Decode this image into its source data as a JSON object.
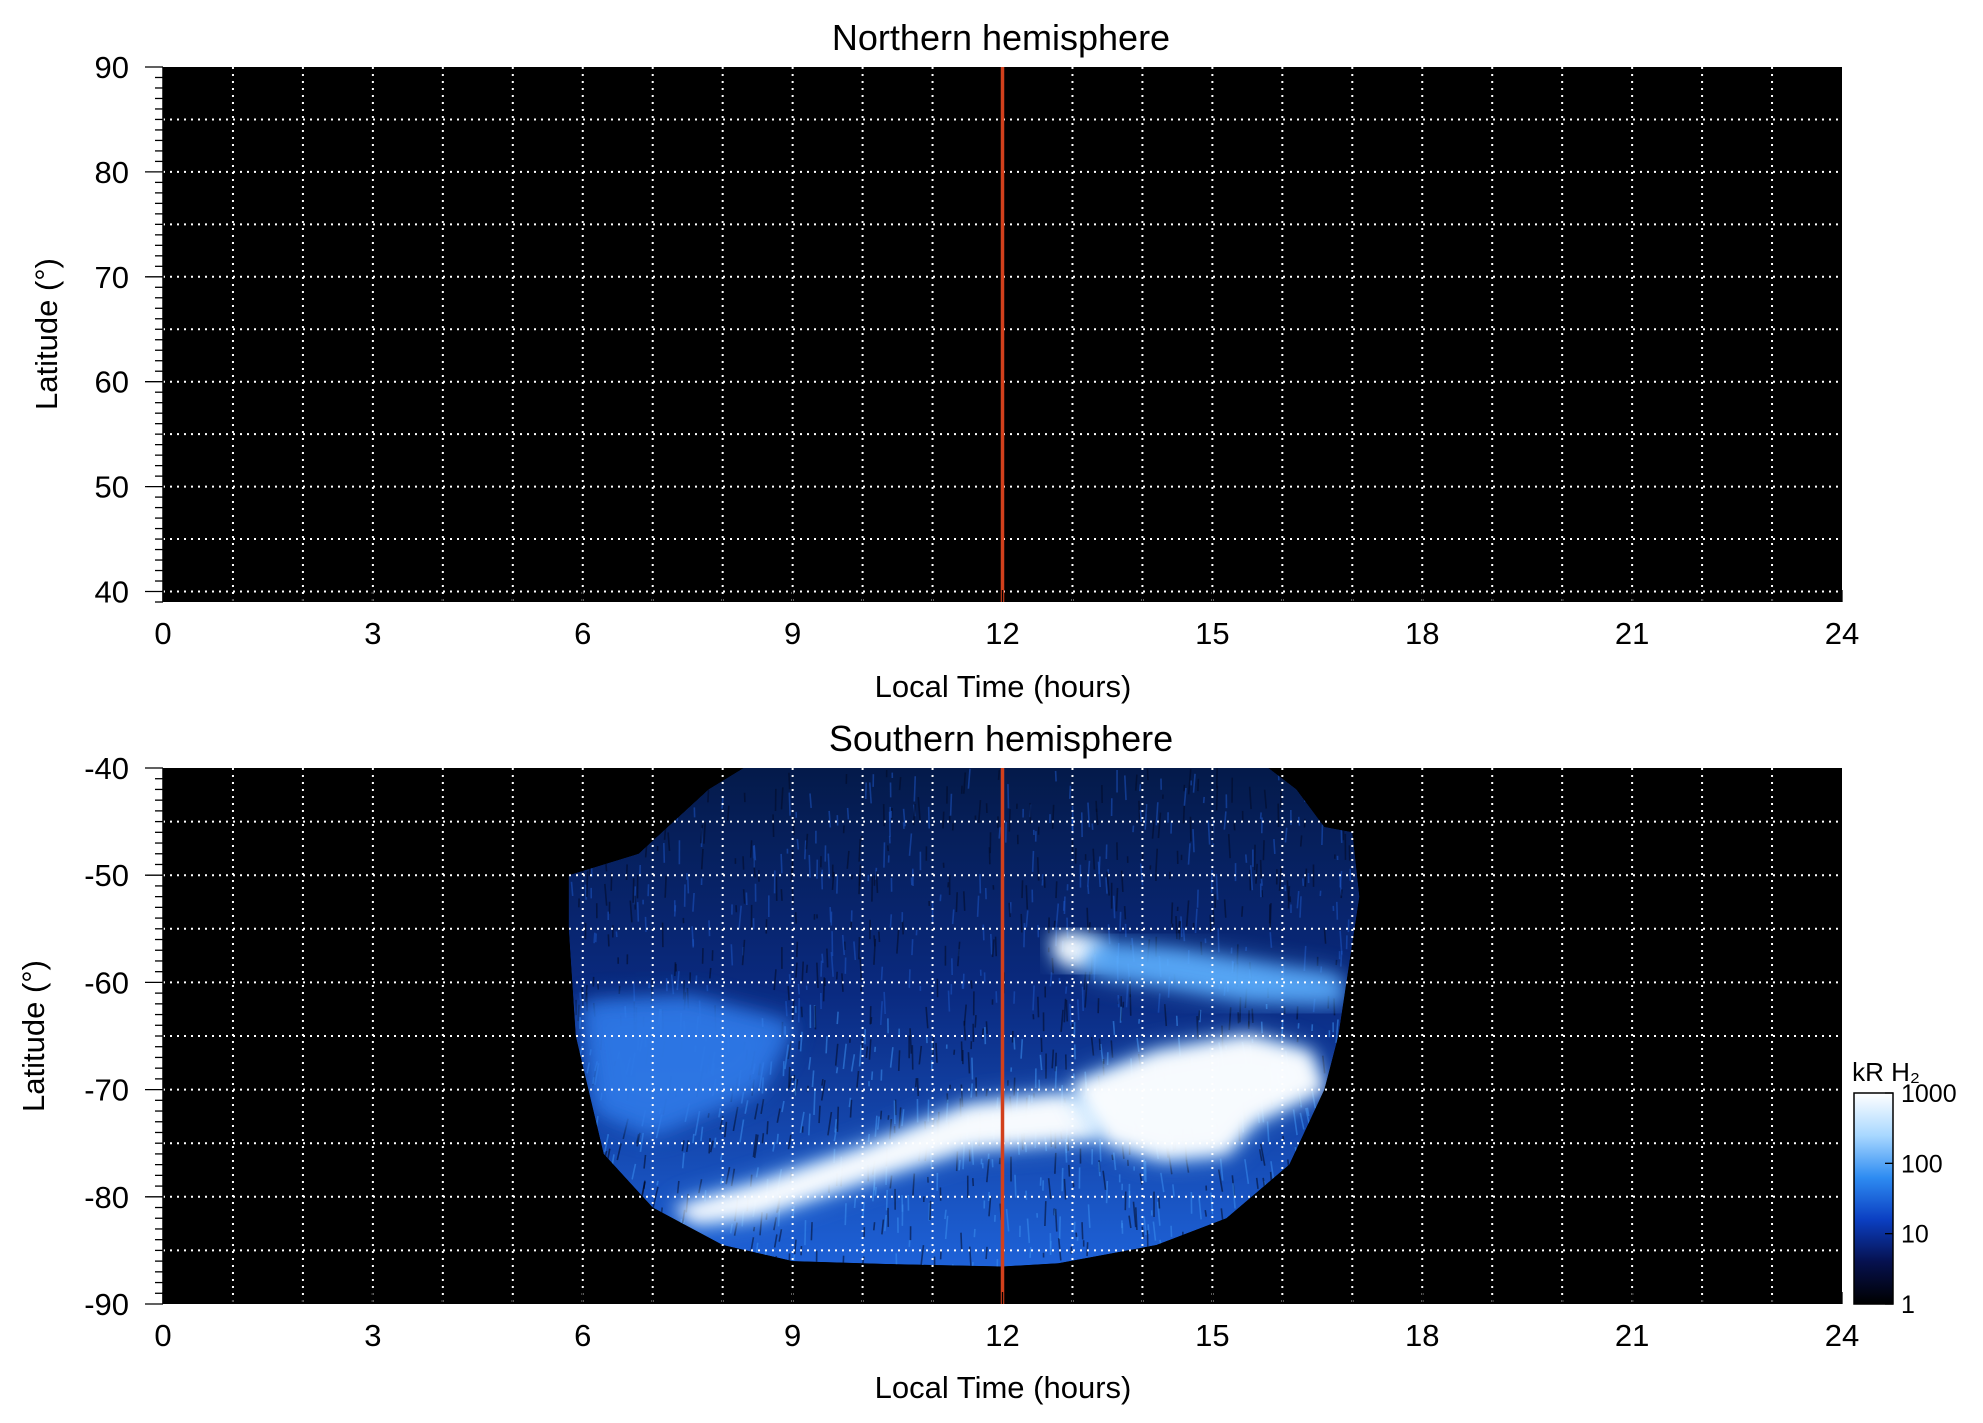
{
  "chart_data": [
    {
      "type": "heatmap",
      "title": "Northern hemisphere",
      "xlabel": "Local Time (hours)",
      "ylabel": "Latitude (°)",
      "xlim": [
        0,
        24
      ],
      "ylim": [
        39,
        90
      ],
      "xticks": [
        0,
        3,
        6,
        9,
        12,
        15,
        18,
        21,
        24
      ],
      "xtick_labels": [
        "0",
        "3",
        "6",
        "9",
        "12",
        "15",
        "18",
        "21",
        "24"
      ],
      "yticks": [
        40,
        50,
        60,
        70,
        80,
        90
      ],
      "ytick_labels": [
        "40",
        "50",
        "60",
        "70",
        "80",
        "90"
      ],
      "grid": true,
      "grid_x_step": 1,
      "grid_y": [
        45,
        55,
        65,
        75,
        85
      ],
      "reference_line": {
        "x": 12,
        "color": "#d2401c"
      },
      "background": "#000000",
      "emission_regions": []
    },
    {
      "type": "heatmap",
      "title": "Southern hemisphere",
      "xlabel": "Local Time (hours)",
      "ylabel": "Latitude (°)",
      "xlim": [
        0,
        24
      ],
      "ylim": [
        -90,
        -40
      ],
      "xticks": [
        0,
        3,
        6,
        9,
        12,
        15,
        18,
        21,
        24
      ],
      "xtick_labels": [
        "0",
        "3",
        "6",
        "9",
        "12",
        "15",
        "18",
        "21",
        "24"
      ],
      "yticks": [
        -90,
        -80,
        -70,
        -60,
        -50,
        -40
      ],
      "ytick_labels": [
        "-90",
        "-80",
        "-70",
        "-60",
        "-50",
        "-40"
      ],
      "grid": true,
      "grid_x_step": 1,
      "grid_y": [
        -45,
        -55,
        -65,
        -75,
        -85
      ],
      "reference_line": {
        "x": 12,
        "color": "#d2401c"
      },
      "background": "#000000",
      "coverage_boundary": [
        [
          5.8,
          -50.0
        ],
        [
          6.8,
          -48.0
        ],
        [
          7.8,
          -42.0
        ],
        [
          8.3,
          -40.0
        ],
        [
          15.8,
          -40.0
        ],
        [
          16.2,
          -42.0
        ],
        [
          16.6,
          -45.5
        ],
        [
          17.0,
          -46.0
        ],
        [
          17.1,
          -52.0
        ],
        [
          16.8,
          -65.0
        ],
        [
          16.6,
          -70.0
        ],
        [
          16.1,
          -77.0
        ],
        [
          15.2,
          -82.0
        ],
        [
          14.2,
          -84.5
        ],
        [
          12.8,
          -86.2
        ],
        [
          12.0,
          -86.5
        ],
        [
          10.5,
          -86.3
        ],
        [
          9.0,
          -86.0
        ],
        [
          8.0,
          -84.5
        ],
        [
          7.0,
          -81.0
        ],
        [
          6.3,
          -76.0
        ],
        [
          5.9,
          -65.0
        ],
        [
          5.8,
          -55.0
        ]
      ],
      "emission_regions": [
        {
          "name": "main-oval-dawn",
          "points": [
            [
              7.3,
              -81.0
            ],
            [
              8.5,
              -78.8
            ],
            [
              10.0,
              -75.5
            ],
            [
              11.5,
              -71.5
            ],
            [
              12.8,
              -70.5
            ],
            [
              13.6,
              -70.8
            ],
            [
              13.4,
              -74.5
            ],
            [
              11.5,
              -75.5
            ],
            [
              10.0,
              -78.5
            ],
            [
              8.5,
              -81.8
            ],
            [
              7.6,
              -82.5
            ]
          ],
          "intensity_kR": 1000
        },
        {
          "name": "main-oval-dusk",
          "points": [
            [
              13.0,
              -69.5
            ],
            [
              14.2,
              -66.5
            ],
            [
              15.5,
              -65.0
            ],
            [
              16.4,
              -66.5
            ],
            [
              16.6,
              -70.0
            ],
            [
              15.6,
              -73.0
            ],
            [
              15.2,
              -76.0
            ],
            [
              14.3,
              -76.5
            ],
            [
              13.5,
              -75.0
            ]
          ],
          "intensity_kR": 1000
        },
        {
          "name": "bright-spot",
          "points": [
            [
              12.7,
              -55.8
            ],
            [
              13.0,
              -55.5
            ],
            [
              13.4,
              -56.2
            ],
            [
              13.5,
              -57.5
            ],
            [
              13.1,
              -58.6
            ],
            [
              12.8,
              -58.0
            ]
          ],
          "intensity_kR": 1000
        },
        {
          "name": "arc-to-dusk",
          "points": [
            [
              13.3,
              -56.5
            ],
            [
              14.5,
              -57.2
            ],
            [
              16.0,
              -58.8
            ],
            [
              16.8,
              -59.5
            ],
            [
              16.9,
              -61.8
            ],
            [
              15.5,
              -61.5
            ],
            [
              14.2,
              -60.0
            ],
            [
              13.2,
              -59.0
            ]
          ],
          "intensity_kR": 150
        },
        {
          "name": "diffuse-dawn",
          "points": [
            [
              6.0,
              -62.0
            ],
            [
              7.5,
              -61.5
            ],
            [
              9.0,
              -64.0
            ],
            [
              8.5,
              -70.0
            ],
            [
              7.0,
              -74.0
            ],
            [
              6.2,
              -72.0
            ]
          ],
          "intensity_kR": 30
        }
      ],
      "colorbar": {
        "label": "kR H₂",
        "scale": "log",
        "range": [
          1,
          1000
        ],
        "ticks": [
          1,
          10,
          100,
          1000
        ],
        "tick_labels": [
          "1",
          "10",
          "100",
          "1000"
        ],
        "colors": [
          "#000000",
          "#06114f",
          "#0b3fc2",
          "#2e8cf2",
          "#a9d8ff",
          "#ffffff"
        ]
      }
    }
  ]
}
